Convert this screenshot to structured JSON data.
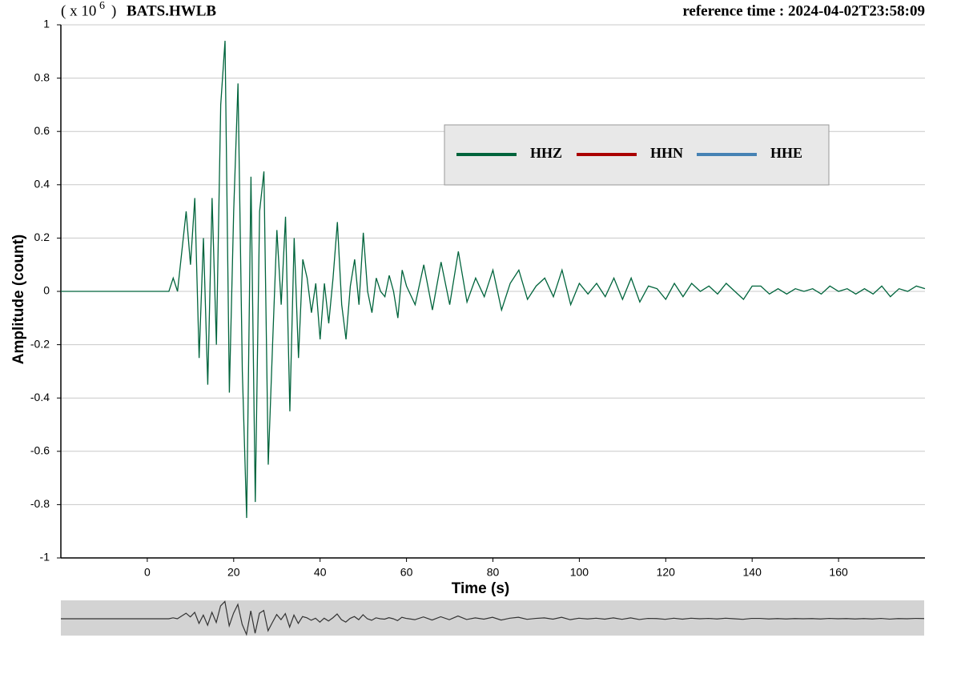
{
  "chart_data": {
    "type": "line",
    "title": "BATS.HWLB",
    "y_scale_prefix": "( x 10",
    "y_scale_exponent": "6",
    "y_scale_suffix": ")",
    "reference_time": "reference time : 2024-04-02T23:58:09",
    "x_label": "Time (s)",
    "y_label": "Amplitude (count)",
    "xlim": [
      -20,
      180
    ],
    "ylim": [
      -1,
      1
    ],
    "xticks": [
      0,
      20,
      40,
      60,
      80,
      100,
      120,
      140,
      160
    ],
    "yticks": [
      -1,
      -0.8,
      -0.6,
      -0.4,
      -0.2,
      0,
      0.2,
      0.4,
      0.6,
      0.8,
      1
    ],
    "grid": true,
    "legend": "top-right",
    "x": [
      -20,
      5,
      6,
      7,
      8,
      9,
      10,
      11,
      12,
      13,
      14,
      15,
      16,
      17,
      18,
      19,
      20,
      21,
      22,
      23,
      24,
      25,
      26,
      27,
      28,
      29,
      30,
      31,
      32,
      33,
      34,
      35,
      36,
      37,
      38,
      39,
      40,
      41,
      42,
      43,
      44,
      45,
      46,
      47,
      48,
      49,
      50,
      51,
      52,
      53,
      54,
      55,
      56,
      57,
      58,
      59,
      60,
      62,
      64,
      66,
      68,
      70,
      72,
      74,
      76,
      78,
      80,
      82,
      84,
      86,
      88,
      90,
      92,
      94,
      96,
      98,
      100,
      102,
      104,
      106,
      108,
      110,
      112,
      114,
      116,
      118,
      120,
      122,
      124,
      126,
      128,
      130,
      132,
      134,
      136,
      138,
      140,
      142,
      144,
      146,
      148,
      150,
      152,
      154,
      156,
      158,
      160,
      162,
      164,
      166,
      168,
      170,
      172,
      174,
      176,
      178,
      180
    ],
    "series": [
      {
        "name": "HHZ",
        "color": "#00643c",
        "values": [
          0,
          0,
          0.05,
          0.0,
          0.15,
          0.3,
          0.1,
          0.35,
          -0.25,
          0.2,
          -0.35,
          0.35,
          -0.2,
          0.7,
          0.94,
          -0.38,
          0.3,
          0.78,
          -0.3,
          -0.85,
          0.43,
          -0.79,
          0.3,
          0.45,
          -0.65,
          -0.2,
          0.23,
          -0.05,
          0.28,
          -0.45,
          0.2,
          -0.25,
          0.12,
          0.05,
          -0.08,
          0.03,
          -0.18,
          0.03,
          -0.12,
          0.05,
          0.26,
          -0.05,
          -0.18,
          0.02,
          0.12,
          -0.05,
          0.22,
          0.0,
          -0.08,
          0.05,
          0.0,
          -0.02,
          0.06,
          0.0,
          -0.1,
          0.08,
          0.02,
          -0.05,
          0.1,
          -0.07,
          0.11,
          -0.05,
          0.15,
          -0.04,
          0.05,
          -0.02,
          0.08,
          -0.07,
          0.03,
          0.08,
          -0.03,
          0.02,
          0.05,
          -0.02,
          0.08,
          -0.05,
          0.03,
          -0.01,
          0.03,
          -0.02,
          0.05,
          -0.03,
          0.05,
          -0.04,
          0.02,
          0.01,
          -0.03,
          0.03,
          -0.02,
          0.03,
          0.0,
          0.02,
          -0.01,
          0.03,
          0.0,
          -0.03,
          0.02,
          0.02,
          -0.01,
          0.01,
          -0.01,
          0.01,
          0.0,
          0.01,
          -0.01,
          0.02,
          0.0,
          0.01,
          -0.01,
          0.01,
          -0.01,
          0.02,
          -0.02,
          0.01,
          0.0,
          0.02,
          0.01
        ]
      },
      {
        "name": "HHN",
        "color": "#aa0000"
      },
      {
        "name": "HHE",
        "color": "#4682b4"
      }
    ]
  }
}
